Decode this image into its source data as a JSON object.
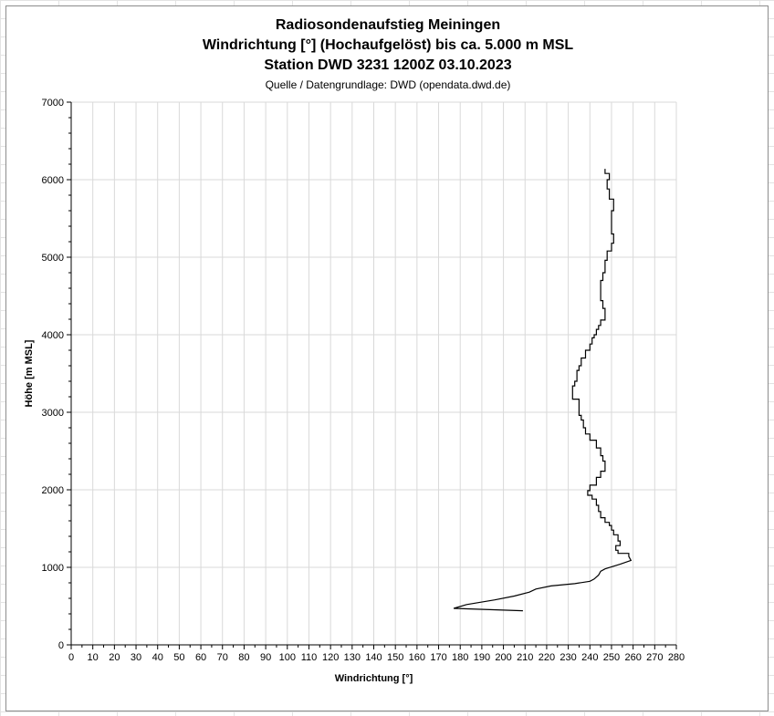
{
  "chart_data": {
    "type": "line",
    "title": "Radiosondenaufstieg Meiningen",
    "subtitle": "Windrichtung [°] (Hochaufgelöst) bis ca. 5.000 m MSL",
    "subtitle2": "Station DWD 3231 1200Z 03.10.2023",
    "source": "Quelle / Datengrundlage: DWD (opendata.dwd.de)",
    "xlabel": "Windrichtung [°]",
    "ylabel": "Höhe [m MSL]",
    "xlim": [
      0,
      280
    ],
    "ylim": [
      0,
      7000
    ],
    "xticks": [
      0,
      10,
      20,
      30,
      40,
      50,
      60,
      70,
      80,
      90,
      100,
      110,
      120,
      130,
      140,
      150,
      160,
      170,
      180,
      190,
      200,
      210,
      220,
      230,
      240,
      250,
      260,
      270,
      280
    ],
    "yticks": [
      0,
      1000,
      2000,
      3000,
      4000,
      5000,
      6000,
      7000
    ],
    "grid": true,
    "legend": "none",
    "line_color": "#000000",
    "series": [
      {
        "x": [
          209,
          177,
          183,
          196,
          205,
          212,
          215,
          222,
          233,
          240,
          242,
          244,
          245,
          247,
          254,
          259,
          258,
          253,
          252,
          254,
          253,
          251,
          250,
          249,
          247,
          245,
          244,
          243,
          241,
          239,
          240,
          243,
          245,
          247,
          247,
          246,
          245,
          243,
          240,
          238,
          237,
          236,
          235,
          235,
          232,
          232,
          233,
          234,
          234,
          235,
          236,
          238,
          240,
          241,
          242,
          243,
          244,
          245,
          247,
          247,
          246,
          245,
          245,
          245,
          246,
          247,
          248,
          250,
          251,
          250,
          251,
          249,
          248,
          249,
          247,
          247
        ],
        "y": [
          440,
          470,
          520,
          580,
          630,
          680,
          720,
          760,
          790,
          820,
          850,
          900,
          950,
          980,
          1040,
          1090,
          1140,
          1180,
          1220,
          1280,
          1340,
          1420,
          1480,
          1540,
          1580,
          1640,
          1720,
          1800,
          1880,
          1930,
          1990,
          2060,
          2160,
          2240,
          2300,
          2370,
          2440,
          2540,
          2640,
          2720,
          2800,
          2900,
          2960,
          3060,
          3170,
          3260,
          3340,
          3400,
          3460,
          3540,
          3600,
          3700,
          3800,
          3880,
          3960,
          4000,
          4070,
          4120,
          4190,
          4260,
          4340,
          4440,
          4530,
          4620,
          4700,
          4800,
          4960,
          5080,
          5180,
          5300,
          5600,
          5750,
          5880,
          6000,
          6080,
          6140
        ]
      }
    ]
  }
}
